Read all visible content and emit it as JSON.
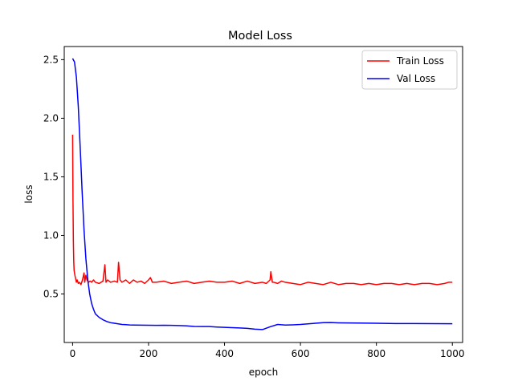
{
  "chart_data": {
    "type": "line",
    "title": "Model Loss",
    "xlabel": "epoch",
    "ylabel": "loss",
    "xlim": [
      -22,
      1027
    ],
    "ylim": [
      0.086,
      2.612
    ],
    "xticks": [
      0,
      200,
      400,
      600,
      800,
      1000
    ],
    "xtick_labels": [
      "0",
      "200",
      "400",
      "600",
      "800",
      "1000"
    ],
    "yticks": [
      0.5,
      1.0,
      1.5,
      2.0,
      2.5
    ],
    "ytick_labels": [
      "0.5",
      "1.0",
      "1.5",
      "2.0",
      "2.5"
    ],
    "grid": false,
    "legend_position": "top-right",
    "series": [
      {
        "name": "Train Loss",
        "color": "#ff0000",
        "x": [
          0,
          1,
          2,
          3,
          4,
          6,
          8,
          10,
          12,
          15,
          18,
          22,
          26,
          30,
          32,
          35,
          38,
          42,
          46,
          50,
          55,
          60,
          70,
          80,
          85,
          88,
          92,
          100,
          110,
          118,
          121,
          125,
          130,
          140,
          150,
          160,
          170,
          180,
          190,
          200,
          205,
          210,
          220,
          240,
          260,
          280,
          300,
          320,
          340,
          360,
          380,
          400,
          420,
          440,
          460,
          480,
          500,
          510,
          520,
          522,
          526,
          530,
          540,
          550,
          560,
          580,
          600,
          620,
          640,
          660,
          680,
          700,
          720,
          740,
          760,
          780,
          800,
          820,
          840,
          860,
          880,
          900,
          920,
          940,
          960,
          980,
          990,
          1000
        ],
        "y": [
          1.86,
          1.3,
          0.95,
          0.78,
          0.7,
          0.66,
          0.63,
          0.6,
          0.62,
          0.59,
          0.6,
          0.58,
          0.62,
          0.68,
          0.6,
          0.66,
          0.62,
          0.6,
          0.61,
          0.6,
          0.62,
          0.6,
          0.59,
          0.61,
          0.75,
          0.6,
          0.62,
          0.6,
          0.61,
          0.6,
          0.77,
          0.62,
          0.6,
          0.62,
          0.59,
          0.62,
          0.6,
          0.61,
          0.59,
          0.62,
          0.64,
          0.6,
          0.6,
          0.61,
          0.59,
          0.6,
          0.61,
          0.59,
          0.6,
          0.61,
          0.6,
          0.6,
          0.61,
          0.59,
          0.61,
          0.59,
          0.6,
          0.59,
          0.62,
          0.69,
          0.6,
          0.6,
          0.59,
          0.61,
          0.6,
          0.59,
          0.58,
          0.6,
          0.59,
          0.58,
          0.6,
          0.58,
          0.59,
          0.59,
          0.58,
          0.59,
          0.58,
          0.59,
          0.59,
          0.58,
          0.59,
          0.58,
          0.59,
          0.59,
          0.58,
          0.59,
          0.6,
          0.6
        ]
      },
      {
        "name": "Val Loss",
        "color": "#0000ff",
        "x": [
          0,
          5,
          10,
          15,
          20,
          25,
          30,
          35,
          40,
          45,
          50,
          55,
          60,
          70,
          80,
          90,
          100,
          110,
          120,
          130,
          140,
          150,
          160,
          180,
          200,
          220,
          240,
          260,
          280,
          300,
          320,
          340,
          360,
          380,
          400,
          420,
          440,
          460,
          480,
          500,
          520,
          540,
          560,
          580,
          600,
          620,
          640,
          660,
          680,
          700,
          750,
          800,
          850,
          900,
          950,
          1000
        ],
        "y": [
          2.51,
          2.48,
          2.35,
          2.1,
          1.75,
          1.38,
          1.05,
          0.8,
          0.62,
          0.5,
          0.42,
          0.37,
          0.33,
          0.3,
          0.28,
          0.265,
          0.255,
          0.25,
          0.245,
          0.24,
          0.238,
          0.236,
          0.235,
          0.234,
          0.233,
          0.232,
          0.233,
          0.232,
          0.231,
          0.228,
          0.223,
          0.222,
          0.222,
          0.218,
          0.215,
          0.213,
          0.21,
          0.207,
          0.2,
          0.196,
          0.22,
          0.24,
          0.235,
          0.237,
          0.24,
          0.245,
          0.25,
          0.255,
          0.256,
          0.254,
          0.252,
          0.25,
          0.248,
          0.248,
          0.247,
          0.246
        ]
      }
    ]
  }
}
